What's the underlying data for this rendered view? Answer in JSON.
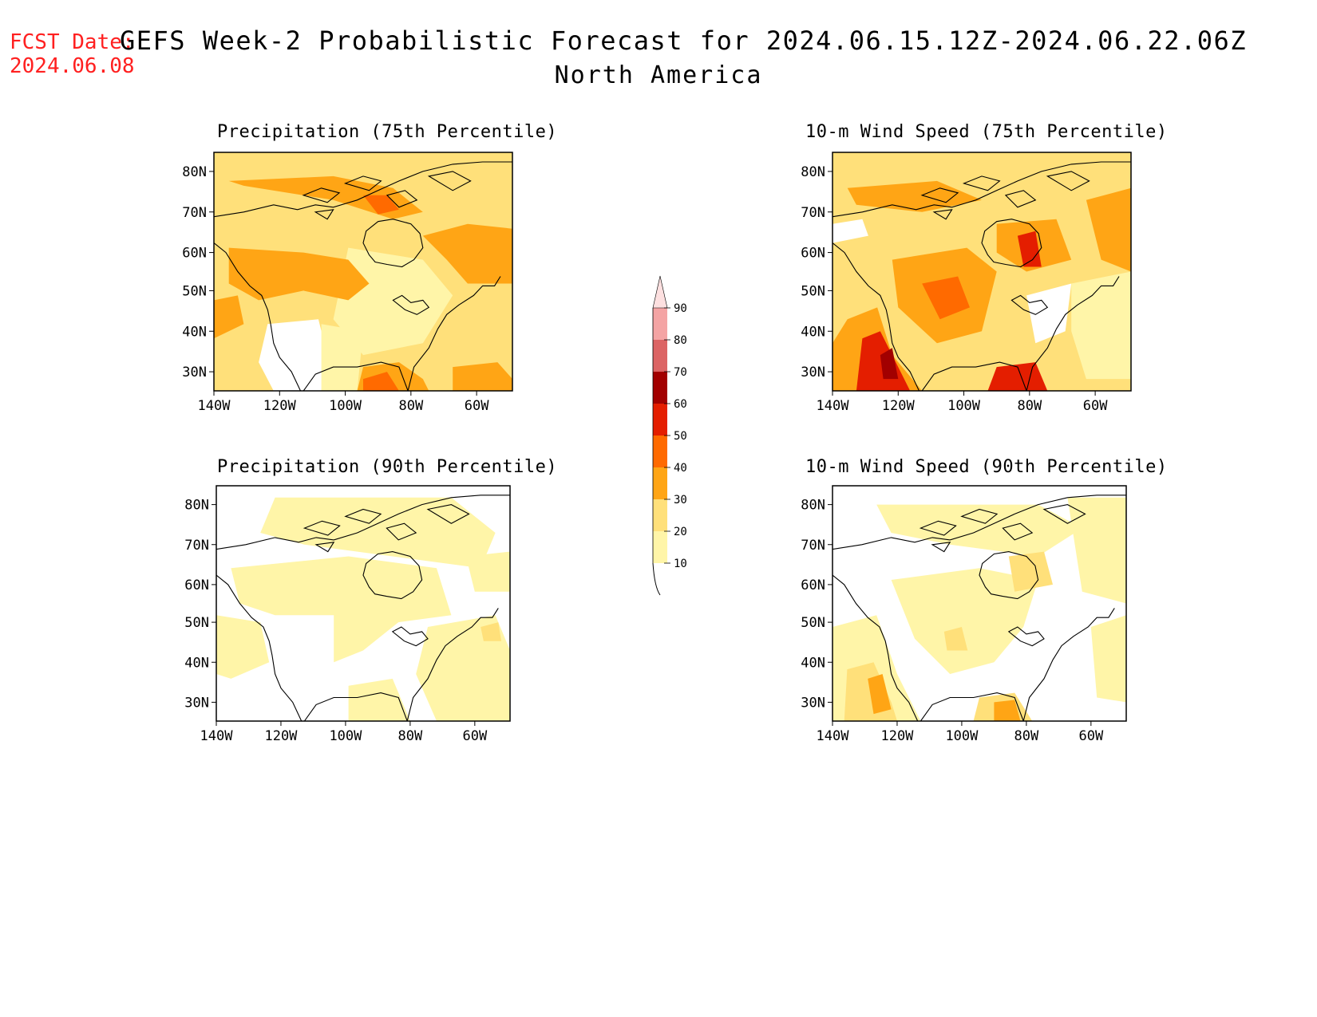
{
  "header": {
    "fcst_label": "FCST Date:",
    "fcst_date": "2024.06.08",
    "title": "GEFS Week-2 Probabilistic Forecast for 2024.06.15.12Z-2024.06.22.06Z",
    "region": "North America"
  },
  "axes": {
    "lat_labels": [
      "80N",
      "70N",
      "60N",
      "50N",
      "40N",
      "30N"
    ],
    "lon_labels": [
      "140W",
      "120W",
      "100W",
      "80W",
      "60W"
    ]
  },
  "panels": [
    {
      "id": "precip-75",
      "title": "Precipitation (75th Percentile)"
    },
    {
      "id": "wind-75",
      "title": "10-m Wind Speed (75th Percentile)"
    },
    {
      "id": "precip-90",
      "title": "Precipitation (90th Percentile)"
    },
    {
      "id": "wind-90",
      "title": "10-m Wind Speed (90th Percentile)"
    }
  ],
  "colorbar": {
    "labels": [
      "10",
      "20",
      "30",
      "40",
      "50",
      "60",
      "70",
      "80",
      "90"
    ],
    "colors": [
      "#fff5a8",
      "#ffe07a",
      "#ffa515",
      "#ff6a00",
      "#e41e00",
      "#a20000",
      "#dc6464",
      "#f4a4a4",
      "#fde0e0"
    ]
  },
  "colors": {
    "fcst_text": "#ff2020",
    "light_yellow": "#fff5a8",
    "yellow": "#ffe07a",
    "orange": "#ffa515",
    "dark_orange": "#ff6a00",
    "red": "#e41e00",
    "dark_red": "#a20000"
  }
}
